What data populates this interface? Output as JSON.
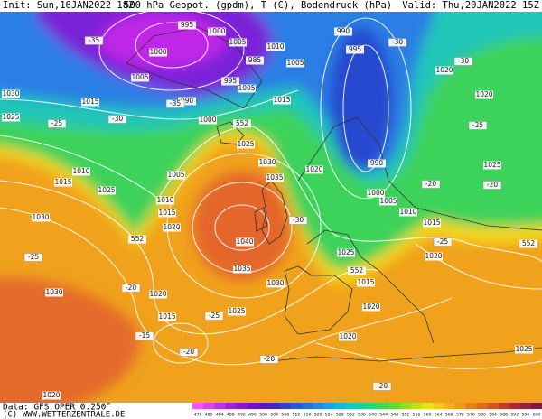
{
  "header": {
    "init": "Init: Sun,16JAN2022 18Z",
    "title": "500 hPa Geopot. (gpdm), T (C), Bodendruck (hPa)",
    "valid": "Valid: Thu,20JAN2022 15Z"
  },
  "footer": {
    "data": "Data: GFS OPER 0.250°",
    "copyright": "(C) WWW.WETTERZENTRALE.DE"
  },
  "colorbar": {
    "labels": [
      "476",
      "480",
      "484",
      "488",
      "492",
      "496",
      "500",
      "504",
      "508",
      "512",
      "516",
      "520",
      "524",
      "528",
      "532",
      "536",
      "540",
      "544",
      "548",
      "552",
      "556",
      "560",
      "564",
      "568",
      "572",
      "576",
      "580",
      "584",
      "588",
      "592",
      "596",
      "600"
    ],
    "colors": [
      "#ff50ff",
      "#e040f0",
      "#c030e8",
      "#a020e0",
      "#8818d8",
      "#7010d0",
      "#5818c8",
      "#4028c8",
      "#3040d0",
      "#2858d8",
      "#2070e0",
      "#2088e8",
      "#18a0e8",
      "#10b8e0",
      "#10c8c8",
      "#18d0a0",
      "#28d878",
      "#40d850",
      "#60dc30",
      "#90e020",
      "#c0e018",
      "#e8e018",
      "#f8c818",
      "#f8b018",
      "#f09818",
      "#e88018",
      "#e06818",
      "#d85020",
      "#c83828",
      "#b02830",
      "#982038",
      "#801840"
    ]
  },
  "map": {
    "isobar_labels": [
      "995",
      "1000",
      "1005",
      "1010",
      "1005",
      "990",
      "995",
      "1020",
      "1000",
      "1005",
      "985",
      "990",
      "995",
      "1005",
      "1015",
      "1030",
      "1015",
      "1025",
      "1000",
      "1020",
      "1025",
      "1025",
      "1030",
      "1035",
      "1040",
      "1035",
      "1030",
      "1020",
      "990",
      "1000",
      "1005",
      "1010",
      "1015",
      "1020",
      "1025",
      "1015",
      "1020",
      "1020",
      "1025",
      "1010",
      "1015",
      "1025",
      "1005",
      "1010",
      "1015",
      "1020",
      "1030",
      "1030",
      "1020",
      "1025",
      "1015",
      "1020"
    ],
    "temp_labels": [
      "-35",
      "-35",
      "-30",
      "-30",
      "-30",
      "-25",
      "-25",
      "-30",
      "-20",
      "-20",
      "-25",
      "-20",
      "-25",
      "-15",
      "-20",
      "-20",
      "-20",
      "-25"
    ],
    "height_labels": [
      "552",
      "552",
      "552",
      "552"
    ]
  }
}
